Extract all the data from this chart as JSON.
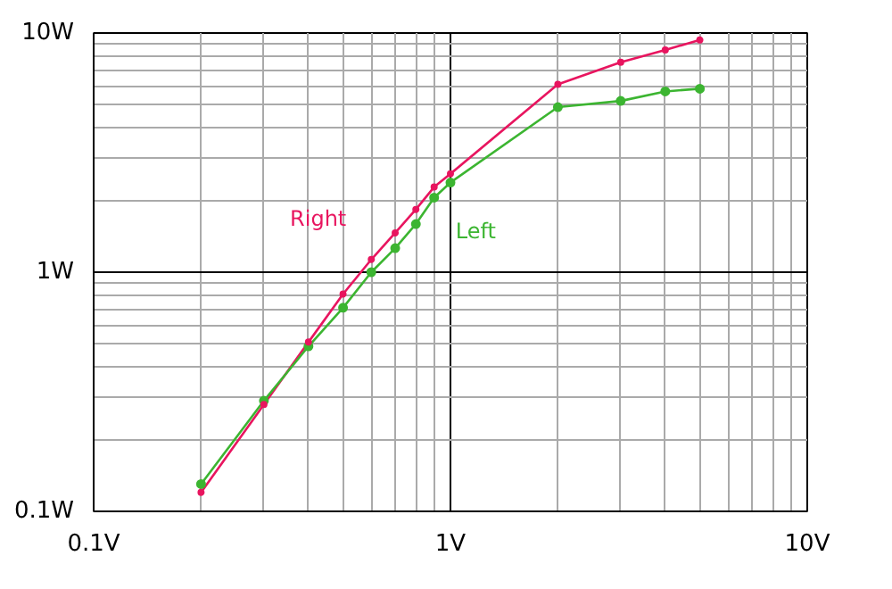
{
  "chart_data": {
    "type": "line",
    "x": [
      0.2,
      0.3,
      0.4,
      0.5,
      0.6,
      0.7,
      0.8,
      0.9,
      1.0,
      2.0,
      3.0,
      4.0,
      5.0
    ],
    "series": [
      {
        "name": "Right",
        "color": "#e8155f",
        "values": [
          0.12,
          0.28,
          0.51,
          0.81,
          1.13,
          1.46,
          1.83,
          2.27,
          2.58,
          6.1,
          7.55,
          8.5,
          9.35
        ]
      },
      {
        "name": "Left",
        "color": "#3cb531",
        "values": [
          0.13,
          0.29,
          0.49,
          0.71,
          1.0,
          1.26,
          1.59,
          2.05,
          2.37,
          4.9,
          5.2,
          5.7,
          5.85
        ]
      }
    ],
    "log": "xy",
    "xlim": [
      0.1,
      10
    ],
    "ylim": [
      0.1,
      10
    ],
    "xticks": [
      {
        "value": 0.1,
        "label": "0.1V"
      },
      {
        "value": 1,
        "label": "1V"
      },
      {
        "value": 10,
        "label": "10V"
      }
    ],
    "yticks": [
      {
        "value": 0.1,
        "label": "0.1W"
      },
      {
        "value": 1,
        "label": "1W"
      },
      {
        "value": 10,
        "label": "10W"
      }
    ],
    "grid": true,
    "marker": "circle",
    "line_style": "solid"
  }
}
